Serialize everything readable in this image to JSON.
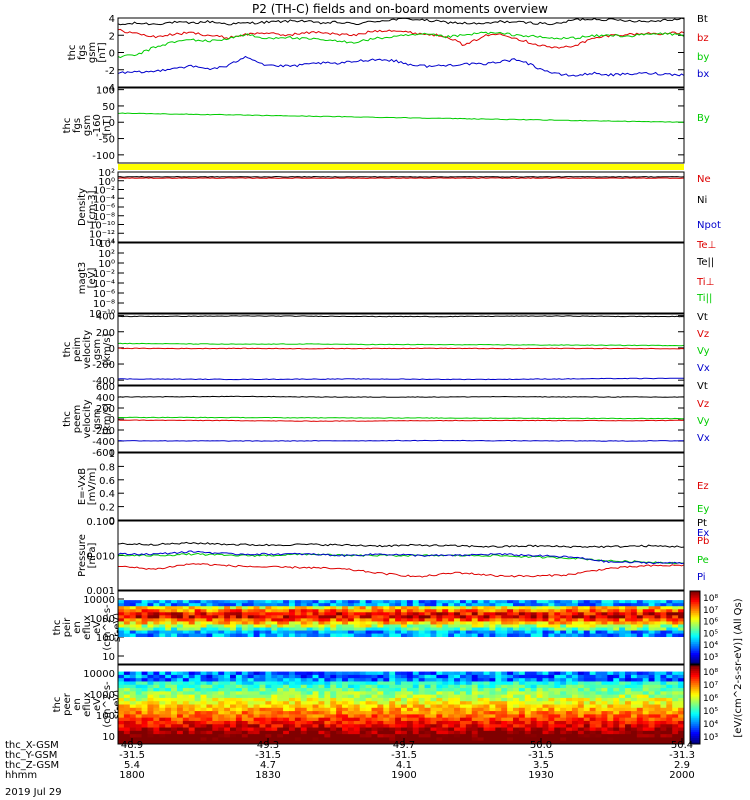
{
  "title": "P2 (TH-C) fields and on-board moments overview",
  "date_label": "2019 Jul 29",
  "colors": {
    "black": "#000000",
    "red": "#dd0000",
    "green": "#00cc00",
    "blue": "#0000cc",
    "yellow": "#ffff00"
  },
  "chart_data": [
    {
      "id": "fgs",
      "type": "line",
      "ylabel": [
        "thc",
        "fgs",
        "gsm",
        "[nT]"
      ],
      "ylim": [
        -4,
        4
      ],
      "yticks": [
        -4,
        -2,
        0,
        2,
        4
      ],
      "series": [
        {
          "name": "Bt",
          "color": "black",
          "values": [
            3.2,
            3.4,
            3.3,
            3.5,
            3.4,
            3.6,
            3.3,
            3.4,
            3.5,
            3.6,
            3.7,
            3.4,
            3.5,
            3.3,
            3.6,
            3.8,
            3.9,
            3.7,
            3.5,
            3.4,
            3.3,
            3.6,
            3.5,
            3.4,
            3.3,
            3.8,
            3.9,
            3.8,
            3.7,
            3.6,
            3.8,
            3.9
          ]
        },
        {
          "name": "bz",
          "color": "red",
          "values": [
            2.6,
            2.2,
            1.8,
            2.1,
            2.3,
            2.0,
            1.7,
            2.1,
            2.3,
            2.0,
            2.2,
            2.4,
            2.1,
            2.0,
            2.5,
            2.6,
            2.3,
            2.1,
            1.9,
            0.8,
            1.9,
            2.2,
            1.5,
            0.9,
            0.5,
            0.8,
            1.6,
            2.0,
            2.1,
            2.2,
            2.2,
            2.3
          ]
        },
        {
          "name": "by",
          "color": "green",
          "values": [
            -0.5,
            -0.3,
            0.6,
            1.2,
            1.5,
            1.3,
            1.6,
            2.1,
            1.6,
            1.8,
            1.6,
            1.5,
            1.3,
            1.2,
            1.6,
            1.8,
            2.0,
            2.1,
            1.8,
            2.0,
            2.3,
            2.2,
            2.0,
            1.8,
            1.6,
            1.7,
            1.9,
            2.0,
            1.9,
            2.1,
            2.2,
            2.0
          ]
        },
        {
          "name": "bx",
          "color": "blue",
          "values": [
            -2.4,
            -2.3,
            -2.2,
            -1.8,
            -1.6,
            -1.9,
            -1.6,
            -0.4,
            -1.4,
            -1.6,
            -1.5,
            -1.2,
            -1.3,
            -1.0,
            -0.8,
            -0.9,
            -1.4,
            -1.6,
            -1.5,
            -1.3,
            -1.4,
            -1.0,
            -0.8,
            -1.8,
            -2.5,
            -2.7,
            -2.4,
            -2.6,
            -2.5,
            -2.4,
            -2.5,
            -2.6
          ]
        }
      ]
    },
    {
      "id": "fgs_dsl",
      "type": "line",
      "ylabel": [
        "thc",
        "fgs",
        "gsm",
        "-160",
        "[nT]"
      ],
      "ylim": [
        -125,
        105
      ],
      "yticks": [
        -100,
        -50,
        0,
        50,
        100
      ],
      "series": [
        {
          "name": "By",
          "color": "green",
          "values": [
            28,
            26,
            24,
            22,
            20,
            18,
            16,
            14,
            12,
            10,
            8,
            6,
            4,
            2,
            0
          ]
        }
      ]
    },
    {
      "id": "density",
      "type": "line",
      "scale": "log",
      "ylabel": [
        "Density",
        "[cm-3]"
      ],
      "ylim": [
        -14,
        2
      ],
      "ytick_labels": [
        "10²",
        "10⁰",
        "10⁻²",
        "10⁻⁴",
        "10⁻⁶",
        "10⁻⁸",
        "10⁻¹⁰",
        "10⁻¹²",
        "10⁻¹⁴"
      ],
      "series": [
        {
          "name": "Ne",
          "color": "red",
          "values": [
            0.6,
            0.6,
            0.6,
            0.6,
            0.6
          ]
        },
        {
          "name": "Ni",
          "color": "black",
          "values": [
            0.9,
            0.9,
            0.9,
            0.9,
            0.9
          ]
        },
        {
          "name": "Npot",
          "color": "blue",
          "values": []
        }
      ]
    },
    {
      "id": "temp",
      "type": "line",
      "scale": "log",
      "ylabel": [
        "magt3",
        "[eV]"
      ],
      "ylim": [
        -10,
        4
      ],
      "ytick_labels": [
        "10⁴",
        "10²",
        "10⁰",
        "10⁻²",
        "10⁻⁴",
        "10⁻⁶",
        "10⁻⁸",
        "10⁻¹⁰"
      ],
      "series": [
        {
          "name": "Te⊥",
          "color": "red",
          "values": []
        },
        {
          "name": "Te||",
          "color": "black",
          "values": []
        },
        {
          "name": "Ti⊥",
          "color": "red",
          "values": []
        },
        {
          "name": "Ti||",
          "color": "green",
          "values": []
        }
      ]
    },
    {
      "id": "peim_vel",
      "type": "line",
      "ylabel": [
        "thc",
        "peim",
        "velocity",
        "gsm",
        "[km/s]"
      ],
      "ylim": [
        -460,
        420
      ],
      "yticks": [
        -400,
        -200,
        0,
        200,
        400
      ],
      "series": [
        {
          "name": "Vt",
          "color": "black",
          "values": [
            390,
            392,
            395,
            393,
            390,
            388,
            392,
            395,
            390,
            388
          ]
        },
        {
          "name": "Vz",
          "color": "red",
          "values": [
            -5,
            -8,
            -6,
            -10,
            -7,
            -5,
            -9,
            -6,
            -8,
            -10
          ]
        },
        {
          "name": "Vy",
          "color": "green",
          "values": [
            55,
            50,
            45,
            48,
            42,
            40,
            38,
            35,
            32,
            30
          ]
        },
        {
          "name": "Vx",
          "color": "blue",
          "values": [
            -385,
            -388,
            -390,
            -387,
            -386,
            -389,
            -390,
            -385,
            -380,
            -378
          ]
        }
      ]
    },
    {
      "id": "peem_vel",
      "type": "line",
      "ylabel": [
        "thc",
        "peem",
        "velocity",
        "gsm",
        "[km/s]"
      ],
      "ylim": [
        -600,
        600
      ],
      "yticks": [
        -600,
        -400,
        -200,
        0,
        200,
        400,
        600
      ],
      "series": [
        {
          "name": "Vt",
          "color": "black",
          "values": [
            400,
            405,
            410,
            402,
            398,
            400,
            405,
            402,
            400,
            398
          ]
        },
        {
          "name": "Vz",
          "color": "red",
          "values": [
            -20,
            -25,
            -30,
            -40,
            -35,
            -30,
            -25,
            -28,
            -30,
            -25
          ]
        },
        {
          "name": "Vy",
          "color": "green",
          "values": [
            30,
            28,
            25,
            22,
            20,
            18,
            15,
            12,
            10,
            8
          ]
        },
        {
          "name": "Vx",
          "color": "blue",
          "values": [
            -395,
            -398,
            -400,
            -398,
            -395,
            -392,
            -395,
            -398,
            -400,
            -395
          ]
        }
      ]
    },
    {
      "id": "efield",
      "type": "line",
      "ylabel": [
        "E=-VxB",
        "[mV/m]"
      ],
      "ylim": [
        0,
        1
      ],
      "yticks": [
        0,
        0.2,
        0.4,
        0.6,
        0.8,
        1.0
      ],
      "series": [
        {
          "name": "Ez",
          "color": "red",
          "values": []
        },
        {
          "name": "Ey",
          "color": "green",
          "values": []
        },
        {
          "name": "Ex",
          "color": "blue",
          "values": []
        }
      ]
    },
    {
      "id": "pressure",
      "type": "line",
      "scale": "log",
      "ylabel": [
        "Pressure",
        "[nPa]"
      ],
      "ylim": [
        0.001,
        0.1
      ],
      "ytick_labels": [
        "0.100",
        "0.010",
        "0.001"
      ],
      "series": [
        {
          "name": "Pt",
          "color": "black",
          "values": [
            0.022,
            0.021,
            0.023,
            0.021,
            0.02,
            0.021,
            0.02,
            0.019,
            0.02,
            0.019,
            0.018,
            0.019,
            0.018,
            0.018,
            0.019,
            0.018
          ]
        },
        {
          "name": "Pb",
          "color": "red",
          "values": [
            0.0048,
            0.004,
            0.0058,
            0.005,
            0.0046,
            0.0045,
            0.004,
            0.003,
            0.0024,
            0.0032,
            0.0026,
            0.0025,
            0.0028,
            0.0042,
            0.005,
            0.0052
          ]
        },
        {
          "name": "Pe",
          "color": "green",
          "values": [
            0.01,
            0.01,
            0.011,
            0.01,
            0.01,
            0.011,
            0.01,
            0.01,
            0.01,
            0.01,
            0.01,
            0.009,
            0.0085,
            0.007,
            0.0065,
            0.006
          ]
        },
        {
          "name": "Pi",
          "color": "blue",
          "values": [
            0.011,
            0.011,
            0.013,
            0.011,
            0.011,
            0.011,
            0.01,
            0.011,
            0.01,
            0.01,
            0.011,
            0.01,
            0.009,
            0.0065,
            0.0062,
            0.006
          ]
        }
      ]
    },
    {
      "id": "peir",
      "type": "heatmap",
      "ylabel": [
        "thc",
        "peir",
        "en",
        "eflux",
        "eV",
        "(cm^2-s-",
        "sr-eV)"
      ],
      "ytick_labels": [
        "10000",
        "1000",
        "100",
        "10"
      ]
    },
    {
      "id": "peer",
      "type": "heatmap",
      "ylabel": [
        "thc",
        "peer",
        "en",
        "eflux",
        "eV",
        "(cm^2-s-",
        "sr-eV)"
      ],
      "ytick_labels": [
        "10000",
        "1000",
        "100",
        "10"
      ]
    }
  ],
  "colorbar": {
    "labels": [
      "10⁸",
      "10⁷",
      "10⁶",
      "10⁵",
      "10⁴",
      "10³"
    ],
    "unit": "[eV/(cm^2-s-sr-eV)] (All Qs)"
  },
  "xaxis": {
    "row_labels": [
      "thc_X-GSM",
      "thc_Y-GSM",
      "thc_Z-GSM",
      "hhmm"
    ],
    "rows": [
      [
        "48.9",
        "49.3",
        "49.7",
        "50.0",
        "50.4"
      ],
      [
        "-31.5",
        "-31.5",
        "-31.5",
        "-31.5",
        "-31.3"
      ],
      [
        "5.4",
        "4.7",
        "4.1",
        "3.5",
        "2.9"
      ],
      [
        "1800",
        "1830",
        "1900",
        "1930",
        "2000"
      ]
    ]
  }
}
